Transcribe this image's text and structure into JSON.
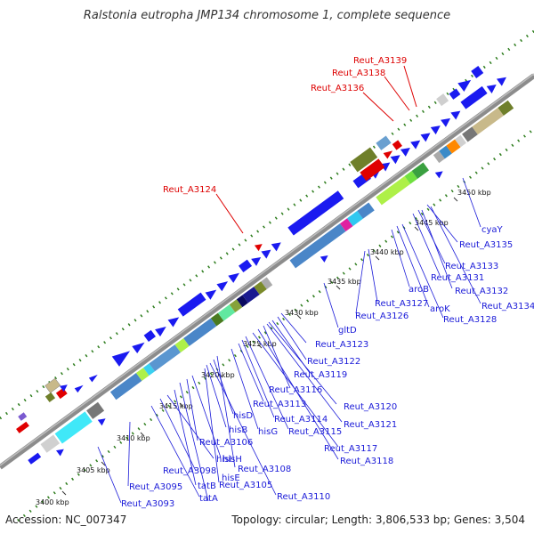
{
  "title": "Ralstonia eutropha JMP134 chromosome 1, complete sequence",
  "accession": "Accession: NC_007347",
  "stats": "Topology: circular; Length: 3,806,533 bp; Genes: 3,504",
  "colors": {
    "backbone": "#8c8c8c",
    "dots": "#2e7d1e",
    "gene_blue": "#1a1af0",
    "highlight_label": "#dd0000",
    "gene_label": "#1a1ad8"
  },
  "ticks": [
    "3400 kbp",
    "3405 kbp",
    "3410 kbp",
    "3415 kbp",
    "3420 kbp",
    "3425 kbp",
    "3430 kbp",
    "3435 kbp",
    "3440 kbp",
    "3445 kbp",
    "3450 kbp"
  ],
  "red_labels": [
    "Reut_A3139",
    "Reut_A3138",
    "Reut_A3136",
    "Reut_A3124"
  ],
  "blue_labels": [
    "cyaY",
    "Reut_A3135",
    "Reut_A3133",
    "Reut_A3131",
    "Reut_A3132",
    "Reut_A3134",
    "aroB",
    "aroK",
    "Reut_A3127",
    "Reut_A3128",
    "Reut_A3126",
    "gltD",
    "Reut_A3123",
    "Reut_A3122",
    "Reut_A3119",
    "Reut_A3116",
    "Reut_A3120",
    "Reut_A3113",
    "Reut_A3114",
    "hisD",
    "hisG",
    "Reut_A3115",
    "Reut_A3121",
    "hisB",
    "Reut_A3106",
    "Reut_A3117",
    "Reut_A3118",
    "hisH",
    "Reut_A3108",
    "hisI",
    "Reut_A3098",
    "tatB",
    "Reut_A3105",
    "Reut_A3095",
    "tatA",
    "hisE",
    "Reut_A3110",
    "Reut_A3093"
  ]
}
